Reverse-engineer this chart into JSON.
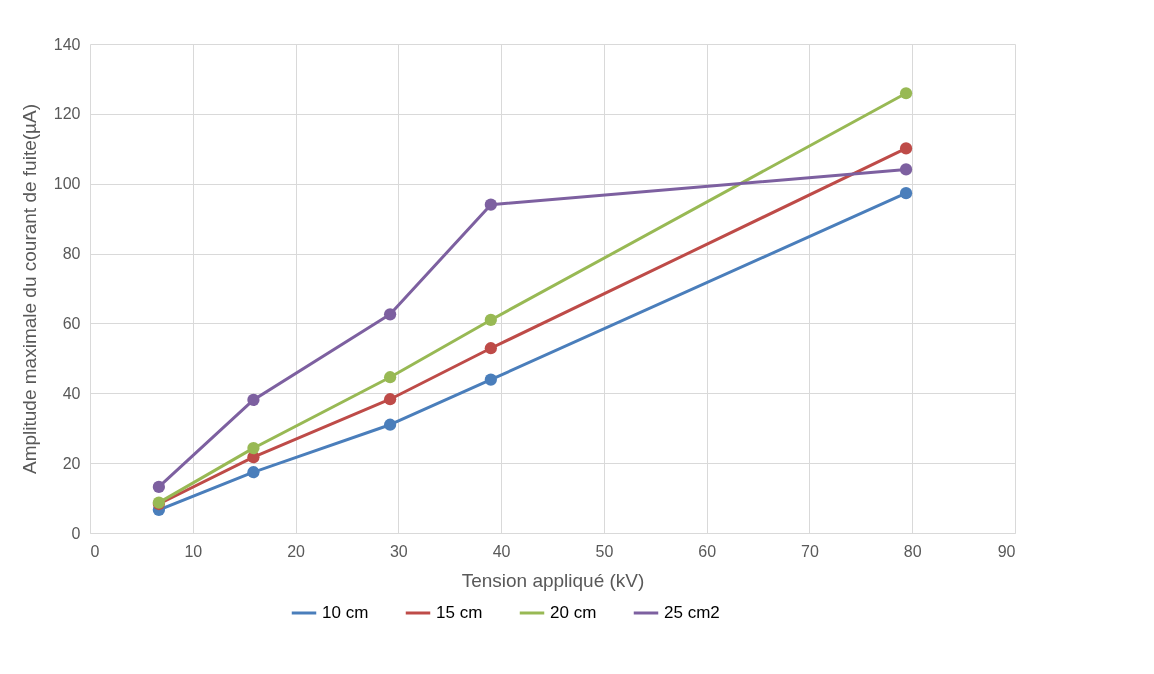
{
  "chart_data": {
    "type": "line",
    "xlabel": "Tension appliqué (kV)",
    "ylabel": "Amplitude maximale du courant de fuite(µA)",
    "x": [
      6.7,
      15.9,
      29.2,
      39,
      79.4
    ],
    "series": [
      {
        "name": "10 cm",
        "color": "#4a7ebb",
        "values": [
          6.6,
          17.4,
          31,
          43.9,
          97.3
        ]
      },
      {
        "name": "15 cm",
        "color": "#be4b48",
        "values": [
          8.3,
          21.7,
          38.3,
          52.9,
          110.1
        ]
      },
      {
        "name": "20 cm",
        "color": "#98b954",
        "values": [
          8.7,
          24.3,
          44.6,
          61,
          125.9
        ]
      },
      {
        "name": "25 cm2",
        "color": "#7d60a0",
        "values": [
          13.2,
          38.1,
          62.6,
          94,
          104.1
        ]
      }
    ],
    "xlim": [
      0,
      90
    ],
    "xticks": [
      0,
      10,
      20,
      30,
      40,
      50,
      60,
      70,
      80,
      90
    ],
    "ylim": [
      0,
      140
    ],
    "yticks": [
      0,
      20,
      40,
      60,
      80,
      100,
      120,
      140
    ],
    "grid": true,
    "legend": "bottom",
    "marker": "circle",
    "line_style": "solid"
  }
}
